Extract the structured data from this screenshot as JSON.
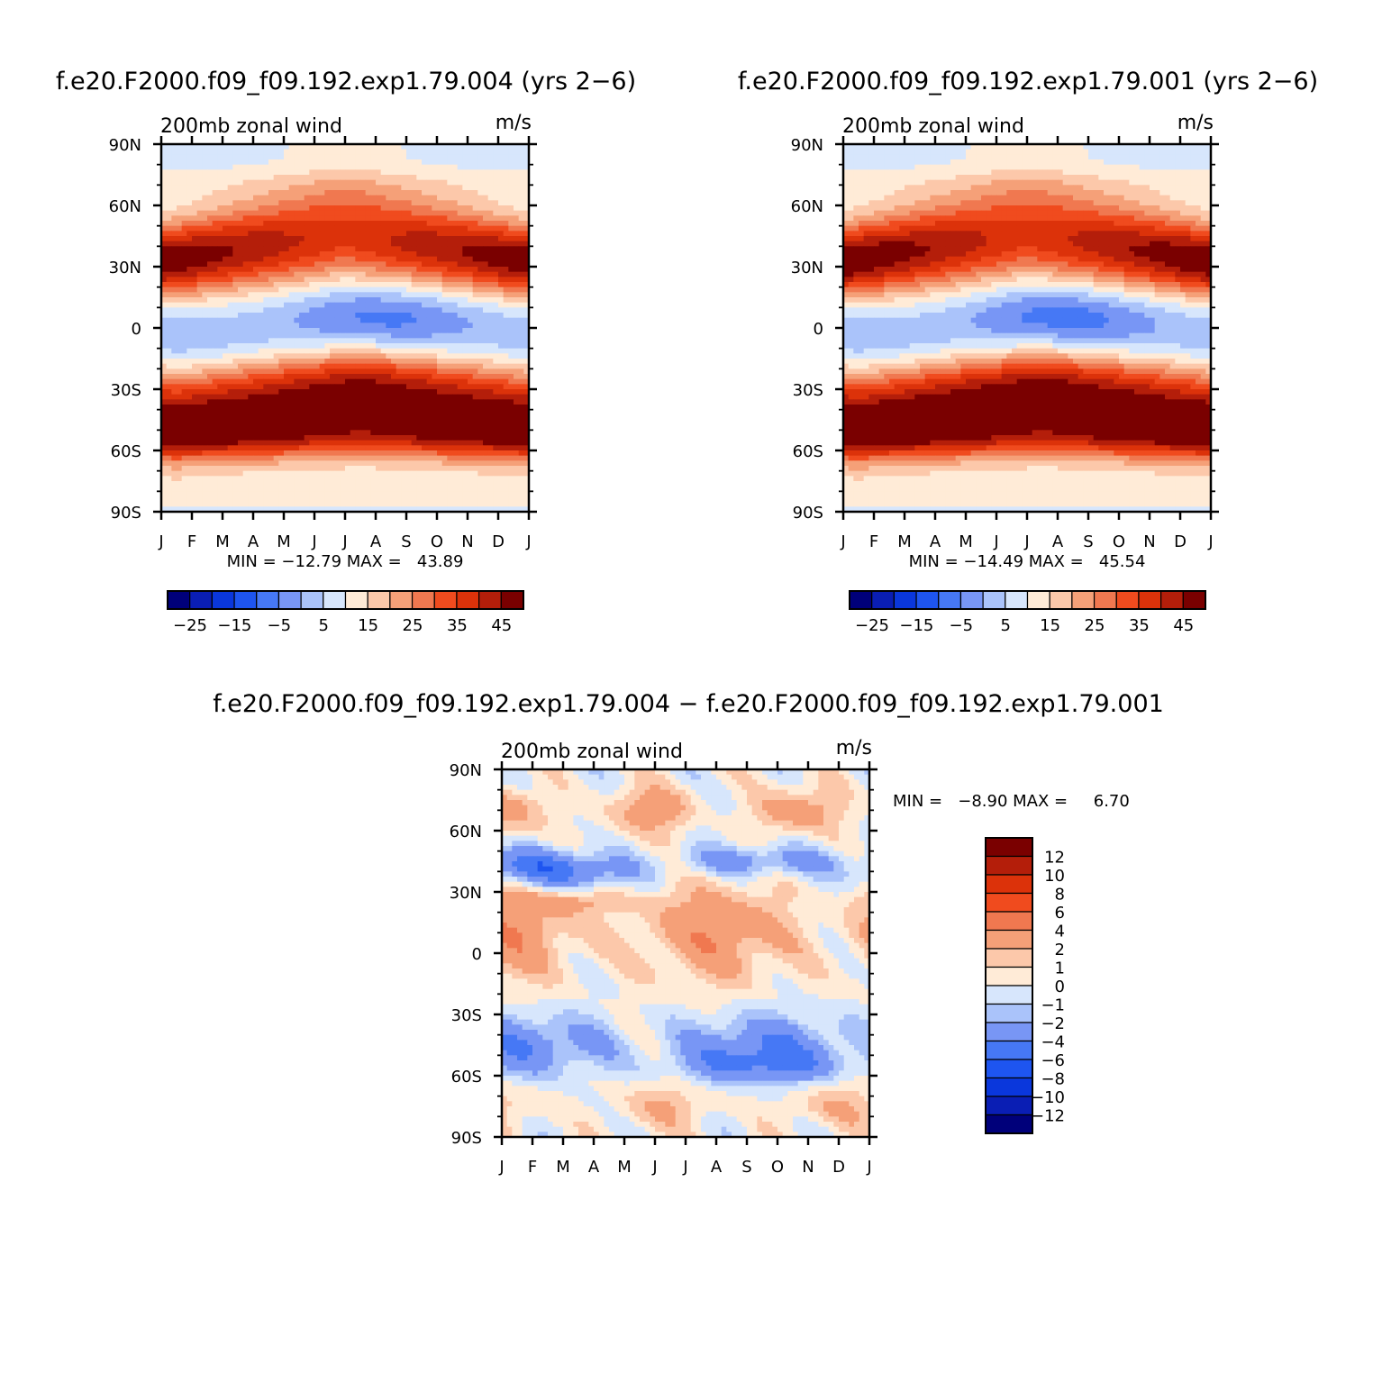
{
  "colors": {
    "abs_palette": [
      "#00007a",
      "#0a1eb4",
      "#0a37dc",
      "#1e55f0",
      "#4678f5",
      "#7896f5",
      "#aac3fa",
      "#d7e6fc",
      "#ffebd7",
      "#fcc8aa",
      "#f5a078",
      "#f07850",
      "#f04b1e",
      "#dc320a",
      "#b41e0a",
      "#7a0000"
    ],
    "diff_palette": [
      "#7a0000",
      "#b41e0a",
      "#dc320a",
      "#f04b1e",
      "#f07850",
      "#f5a078",
      "#fcc8aa",
      "#ffebd7",
      "#d7e6fc",
      "#aac3fa",
      "#7896f5",
      "#4678f5",
      "#1e55f0",
      "#0a37dc",
      "#0a1eb4",
      "#00007a"
    ]
  },
  "chart_data": [
    {
      "type": "heatmap",
      "title": "f.e20.F2000.f09_f09.192.exp1.79.004 (yrs 2−6)",
      "left_label": "200mb zonal wind",
      "right_label": "m/s",
      "x_ticks": [
        "J",
        "F",
        "M",
        "A",
        "M",
        "J",
        "J",
        "A",
        "S",
        "O",
        "N",
        "D",
        "J"
      ],
      "y_ticks": [
        "90N",
        "60N",
        "30N",
        "0",
        "30S",
        "60S",
        "90S"
      ],
      "ylim": [
        -90,
        90
      ],
      "minmax_text": "MIN = −12.79 MAX =   43.89",
      "colorbar_labels": [
        "−25",
        "−15",
        "−5",
        "5",
        "15",
        "25",
        "35",
        "45"
      ],
      "levels": [
        -30,
        -25,
        -20,
        -15,
        -10,
        -5,
        0,
        5,
        10,
        15,
        20,
        25,
        30,
        35,
        40,
        45
      ],
      "jets": [
        {
          "lat": 30,
          "peak_month": 0,
          "vmin": 30,
          "vmax": 44
        },
        {
          "lat": -45,
          "peak_month": 6.5,
          "vmin": 34,
          "vmax": 42
        }
      ],
      "trough": {
        "lat": 5,
        "peak_month": 7.2,
        "vmin": -13
      }
    },
    {
      "type": "heatmap",
      "title": "f.e20.F2000.f09_f09.192.exp1.79.001 (yrs 2−6)",
      "left_label": "200mb zonal wind",
      "right_label": "m/s",
      "x_ticks": [
        "J",
        "F",
        "M",
        "A",
        "M",
        "J",
        "J",
        "A",
        "S",
        "O",
        "N",
        "D",
        "J"
      ],
      "y_ticks": [
        "90N",
        "60N",
        "30N",
        "0",
        "30S",
        "60S",
        "90S"
      ],
      "ylim": [
        -90,
        90
      ],
      "minmax_text": "MIN = −14.49 MAX =   45.54",
      "colorbar_labels": [
        "−25",
        "−15",
        "−5",
        "5",
        "15",
        "25",
        "35",
        "45"
      ],
      "levels": [
        -30,
        -25,
        -20,
        -15,
        -10,
        -5,
        0,
        5,
        10,
        15,
        20,
        25,
        30,
        35,
        40,
        45
      ],
      "jets": [
        {
          "lat": 30,
          "peak_month": 0,
          "vmin": 30,
          "vmax": 45.5
        },
        {
          "lat": -45,
          "peak_month": 6.5,
          "vmin": 35,
          "vmax": 43
        }
      ],
      "trough": {
        "lat": 5,
        "peak_month": 7.2,
        "vmin": -14.5
      }
    },
    {
      "type": "heatmap",
      "title": "f.e20.F2000.f09_f09.192.exp1.79.004 − f.e20.F2000.f09_f09.192.exp1.79.001",
      "left_label": "200mb zonal wind",
      "right_label": "m/s",
      "x_ticks": [
        "J",
        "F",
        "M",
        "A",
        "M",
        "J",
        "J",
        "A",
        "S",
        "O",
        "N",
        "D",
        "J"
      ],
      "y_ticks": [
        "90N",
        "60N",
        "30N",
        "0",
        "30S",
        "60S",
        "90S"
      ],
      "ylim": [
        -90,
        90
      ],
      "minmax_text": "MIN =   −8.90 MAX =     6.70",
      "colorbar_labels": [
        "12",
        "10",
        "8",
        "6",
        "4",
        "2",
        "1",
        "0",
        "−1",
        "−2",
        "−4",
        "−6",
        "−8",
        "−10",
        "−12"
      ],
      "levels": [
        12,
        10,
        8,
        6,
        4,
        2,
        1,
        0,
        -1,
        -2,
        -4,
        -6,
        -8,
        -10,
        -12
      ]
    }
  ]
}
